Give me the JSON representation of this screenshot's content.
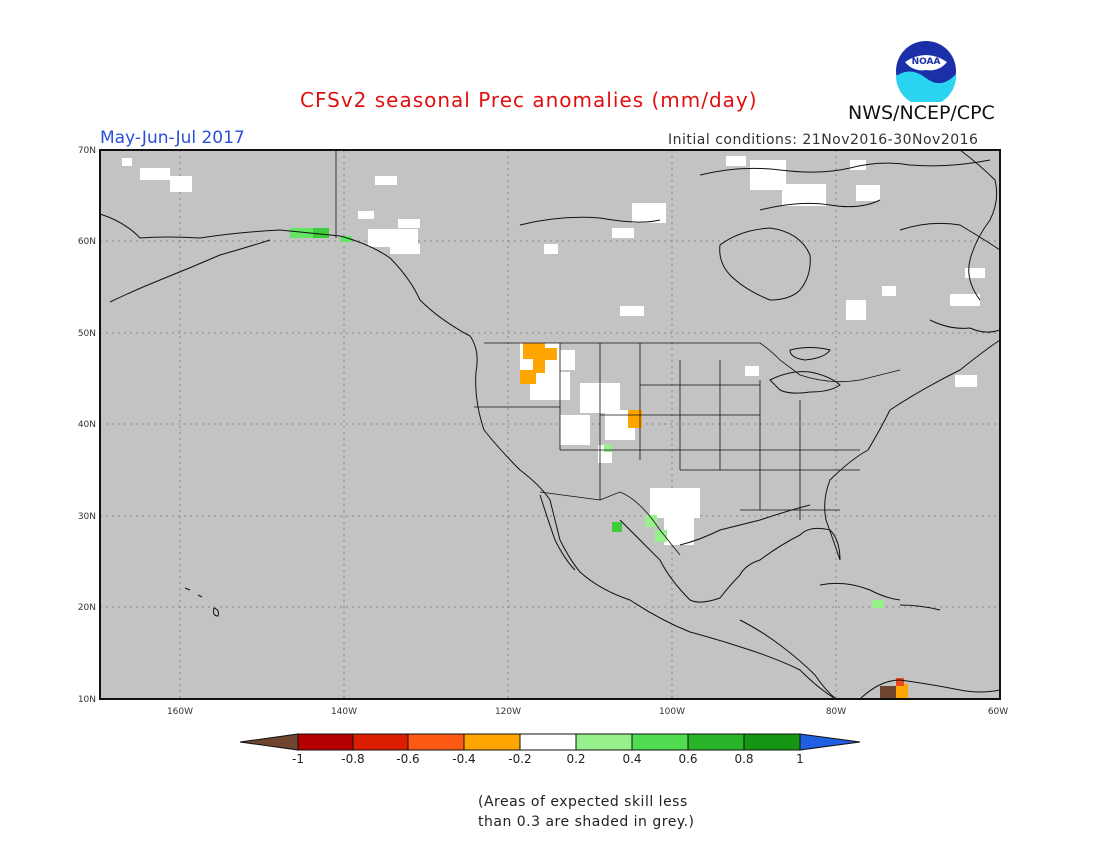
{
  "header": {
    "title": "CFSv2 seasonal Prec anomalies (mm/day)",
    "period": "May-Jun-Jul 2017",
    "initial_conditions": "Initial conditions: 21Nov2016-30Nov2016",
    "agency": "NWS/NCEP/CPC",
    "logo_text": "NOAA"
  },
  "map": {
    "lat_ticks": [
      "70N",
      "60N",
      "50N",
      "40N",
      "30N",
      "20N",
      "10N"
    ],
    "lon_ticks": [
      "160W",
      "140W",
      "120W",
      "100W",
      "80W",
      "60W"
    ],
    "colors": {
      "grey_mask": "#c3c3c3",
      "coast": "#111111",
      "dry": "#ffa500",
      "wet_light": "#64e664",
      "wet": "#3ccc3c",
      "dry_strong": "#e84a1a",
      "dry_extreme": "#6e4630"
    }
  },
  "colorbar": {
    "labels": [
      "-1",
      "-0.8",
      "-0.6",
      "-0.4",
      "-0.2",
      "0.2",
      "0.4",
      "0.6",
      "0.8",
      "1"
    ],
    "colors": [
      "#6e4630",
      "#b40000",
      "#dc1e00",
      "#ff5a14",
      "#ffa500",
      "#ffffff",
      "#96f08c",
      "#50dc50",
      "#28b428",
      "#149614",
      "#2060e0"
    ]
  },
  "note": {
    "line1": "(Areas of expected skill less",
    "line2": "than 0.3 are shaded in grey.)"
  }
}
